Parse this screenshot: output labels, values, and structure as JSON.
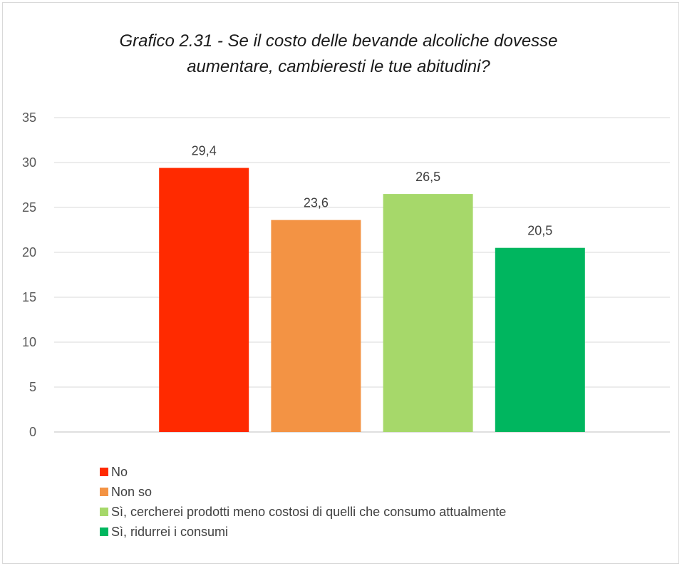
{
  "chart_data": {
    "type": "bar",
    "title_line1": "Grafico 2.31 - Se il costo delle bevande alcoliche dovesse",
    "title_line2": "aumentare, cambieresti le tue abitudini?",
    "ylim": [
      0,
      35
    ],
    "yticks": [
      0,
      5,
      10,
      15,
      20,
      25,
      30,
      35
    ],
    "grid": true,
    "legend_position": "bottom-left",
    "series": [
      {
        "name": "No",
        "value": 29.4,
        "label": "29,4",
        "color": "#ff2a00"
      },
      {
        "name": "Non so",
        "value": 23.6,
        "label": "23,6",
        "color": "#f39344"
      },
      {
        "name": "Sì, cercherei prodotti meno costosi di quelli che consumo attualmente",
        "value": 26.5,
        "label": "26,5",
        "color": "#a6d86a"
      },
      {
        "name": "Sì, ridurrei i consumi",
        "value": 20.5,
        "label": "20,5",
        "color": "#00b65f"
      }
    ]
  }
}
